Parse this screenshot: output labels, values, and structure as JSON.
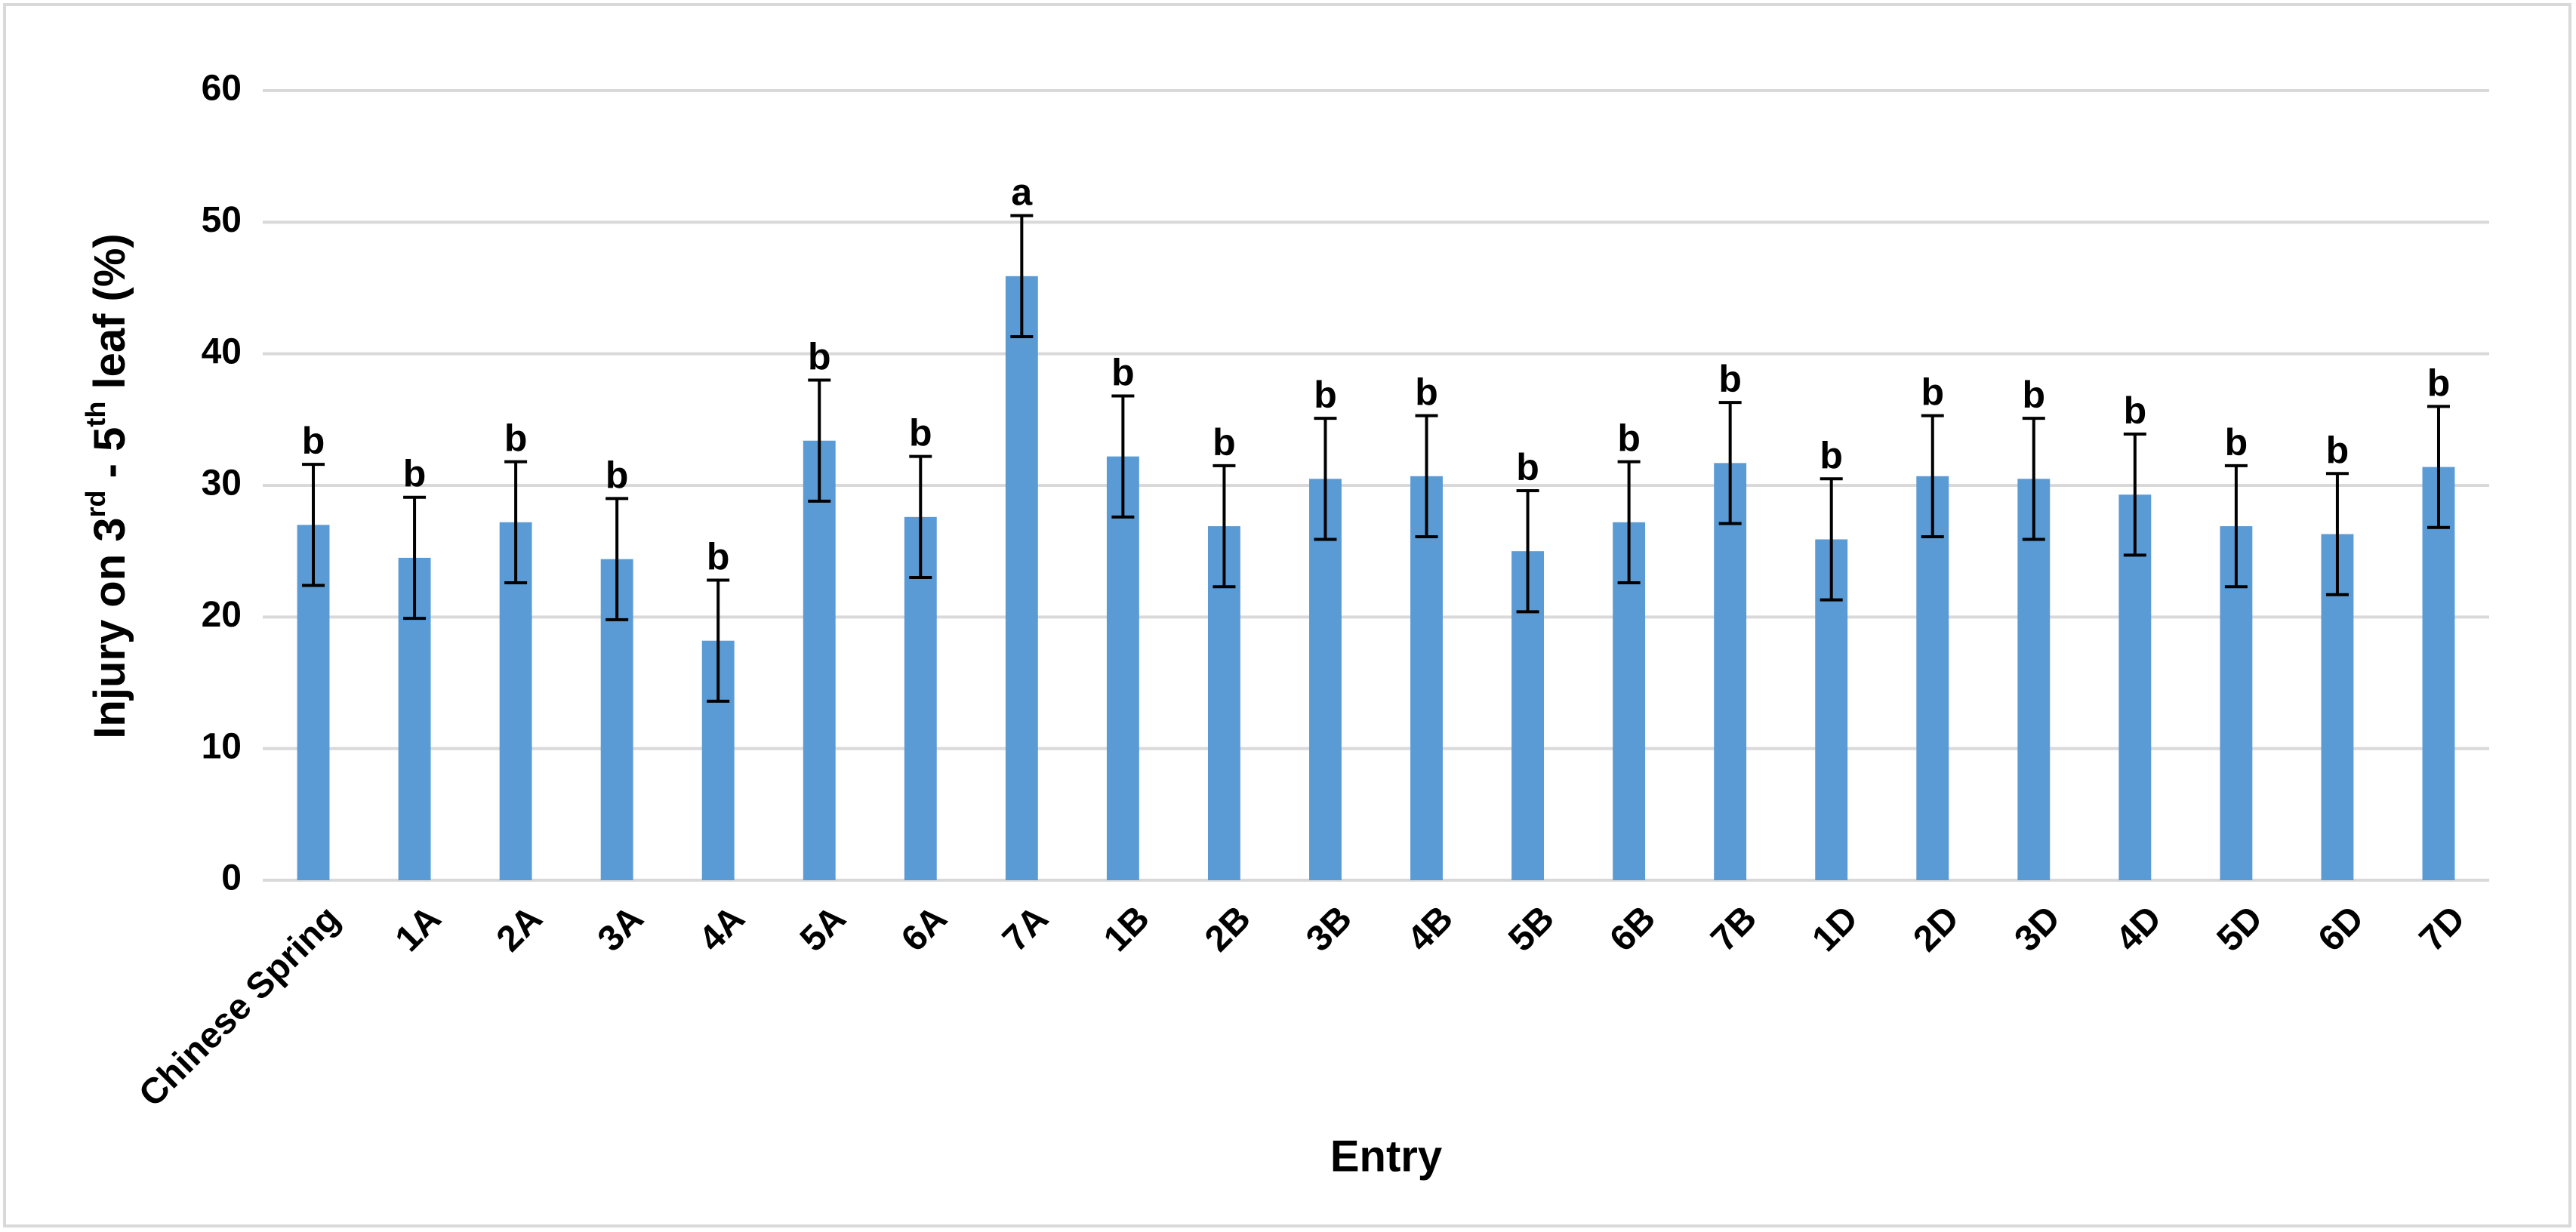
{
  "chart_data": {
    "type": "bar",
    "y_label": [
      {
        "text": "Injury on 3"
      },
      {
        "text": "rd",
        "sup": true
      },
      {
        "text": " - 5"
      },
      {
        "text": "th",
        "sup": true
      },
      {
        "text": " leaf (%)"
      }
    ],
    "x_label": "Entry",
    "categories": [
      "Chinese Spring",
      "1A",
      "2A",
      "3A",
      "4A",
      "5A",
      "6A",
      "7A",
      "1B",
      "2B",
      "3B",
      "4B",
      "5B",
      "6B",
      "7B",
      "1D",
      "2D",
      "3D",
      "4D",
      "5D",
      "6D",
      "7D"
    ],
    "values": [
      27,
      24.5,
      27.2,
      24.4,
      18.2,
      33.4,
      27.6,
      45.9,
      32.2,
      26.9,
      30.5,
      30.7,
      25,
      27.2,
      31.7,
      25.9,
      30.7,
      30.5,
      29.3,
      26.9,
      26.3,
      31.4
    ],
    "errors": [
      4.6,
      4.6,
      4.6,
      4.6,
      4.6,
      4.6,
      4.6,
      4.6,
      4.6,
      4.6,
      4.6,
      4.6,
      4.6,
      4.6,
      4.6,
      4.6,
      4.6,
      4.6,
      4.6,
      4.6,
      4.6,
      4.6
    ],
    "letters": [
      "b",
      "b",
      "b",
      "b",
      "b",
      "b",
      "b",
      "a",
      "b",
      "b",
      "b",
      "b",
      "b",
      "b",
      "b",
      "b",
      "b",
      "b",
      "b",
      "b",
      "b",
      "b"
    ],
    "color": "#5b9bd5",
    "ylim": [
      0,
      60
    ],
    "yticks": [
      0,
      10,
      20,
      30,
      40,
      50,
      60
    ],
    "grid": true
  }
}
